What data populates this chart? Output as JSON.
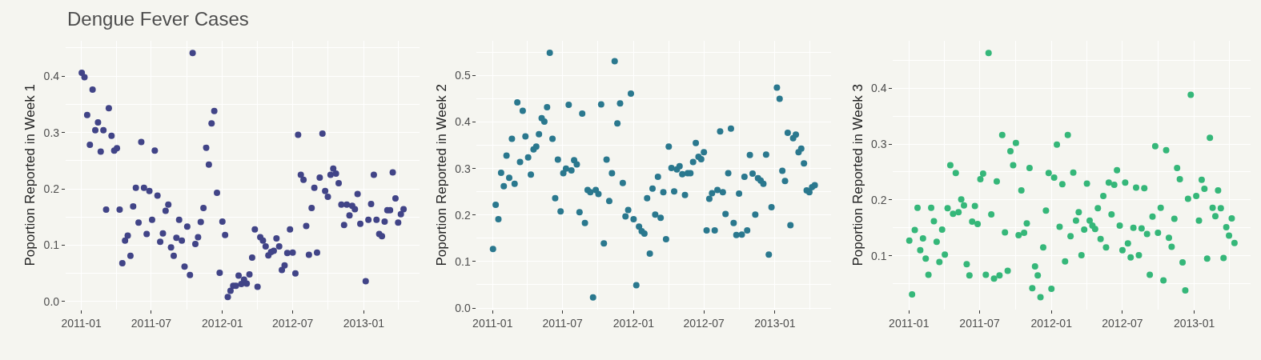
{
  "chart_data": [
    {
      "type": "scatter",
      "title": "Dengue Fever Cases",
      "ylabel": "Poportion Reported in Week 1",
      "color": "#414487",
      "marker": "circle",
      "grid": true,
      "x": [
        "2011-01-02",
        "2011-01-09",
        "2011-01-16",
        "2011-01-23",
        "2011-01-30",
        "2011-02-06",
        "2011-02-13",
        "2011-02-20",
        "2011-02-27",
        "2011-03-06",
        "2011-03-13",
        "2011-03-20",
        "2011-03-27",
        "2011-04-03",
        "2011-04-10",
        "2011-04-17",
        "2011-04-24",
        "2011-05-01",
        "2011-05-08",
        "2011-05-15",
        "2011-05-22",
        "2011-05-29",
        "2011-06-05",
        "2011-06-12",
        "2011-06-19",
        "2011-06-26",
        "2011-07-03",
        "2011-07-10",
        "2011-07-17",
        "2011-07-24",
        "2011-07-31",
        "2011-08-07",
        "2011-08-14",
        "2011-08-21",
        "2011-08-28",
        "2011-09-04",
        "2011-09-11",
        "2011-09-18",
        "2011-09-25",
        "2011-10-02",
        "2011-10-09",
        "2011-10-16",
        "2011-10-23",
        "2011-10-30",
        "2011-11-06",
        "2011-11-13",
        "2011-11-20",
        "2011-11-27",
        "2011-12-04",
        "2011-12-11",
        "2011-12-18",
        "2011-12-25",
        "2012-01-01",
        "2012-01-08",
        "2012-01-15",
        "2012-01-22",
        "2012-01-29",
        "2012-02-05",
        "2012-02-12",
        "2012-02-19",
        "2012-02-26",
        "2012-03-04",
        "2012-03-11",
        "2012-03-18",
        "2012-03-25",
        "2012-04-01",
        "2012-04-08",
        "2012-04-15",
        "2012-04-22",
        "2012-04-29",
        "2012-05-06",
        "2012-05-13",
        "2012-05-20",
        "2012-05-27",
        "2012-06-03",
        "2012-06-10",
        "2012-06-17",
        "2012-06-24",
        "2012-07-01",
        "2012-07-08",
        "2012-07-15",
        "2012-07-22",
        "2012-07-29",
        "2012-08-05",
        "2012-08-12",
        "2012-08-19",
        "2012-08-26",
        "2012-09-02",
        "2012-09-09",
        "2012-09-16",
        "2012-09-23",
        "2012-09-30",
        "2012-10-07",
        "2012-10-14",
        "2012-10-21",
        "2012-10-28",
        "2012-11-04",
        "2012-11-11",
        "2012-11-18",
        "2012-11-25",
        "2012-12-02",
        "2012-12-09",
        "2012-12-16",
        "2012-12-23",
        "2013-01-06",
        "2013-01-13",
        "2013-01-20",
        "2013-01-27",
        "2013-02-03",
        "2013-02-10",
        "2013-02-17",
        "2013-02-24",
        "2013-03-03",
        "2013-03-10",
        "2013-03-17",
        "2013-03-24",
        "2013-03-31",
        "2013-04-07",
        "2013-04-14"
      ],
      "values": [
        0.406,
        0.398,
        0.331,
        0.278,
        0.376,
        0.304,
        0.318,
        0.266,
        0.304,
        0.163,
        0.343,
        0.294,
        0.268,
        0.272,
        0.163,
        0.068,
        0.108,
        0.117,
        0.081,
        0.169,
        0.202,
        0.14,
        0.283,
        0.202,
        0.12,
        0.196,
        0.145,
        0.268,
        0.188,
        0.106,
        0.121,
        0.161,
        0.172,
        0.096,
        0.081,
        0.113,
        0.145,
        0.108,
        0.062,
        0.133,
        0.047,
        0.441,
        0.102,
        0.114,
        0.141,
        0.166,
        0.273,
        0.243,
        0.316,
        0.338,
        0.193,
        0.051,
        0.142,
        0.118,
        0.008,
        0.019,
        0.028,
        0.028,
        0.046,
        0.031,
        0.039,
        0.032,
        0.048,
        0.078,
        0.128,
        0.026,
        0.114,
        0.108,
        0.098,
        0.082,
        0.088,
        0.09,
        0.112,
        0.098,
        0.056,
        0.064,
        0.086,
        0.128,
        0.087,
        0.05,
        0.296,
        0.225,
        0.216,
        0.134,
        0.083,
        0.166,
        0.202,
        0.087,
        0.22,
        0.298,
        0.196,
        0.186,
        0.225,
        0.236,
        0.227,
        0.21,
        0.172,
        0.136,
        0.172,
        0.153,
        0.17,
        0.164,
        0.191,
        0.138,
        0.036,
        0.145,
        0.173,
        0.225,
        0.145,
        0.12,
        0.116,
        0.142,
        0.162,
        0.162,
        0.229,
        0.183,
        0.14,
        0.155,
        0.164
      ],
      "xlim": [
        "2010-11-21",
        "2013-05-26"
      ],
      "xticks": [
        "2011-01",
        "2011-07",
        "2012-01",
        "2012-07",
        "2013-01"
      ],
      "ylim": [
        -0.014,
        0.463
      ],
      "yticks": [
        {
          "value": 0,
          "label": "0.0"
        },
        0.1,
        0.2,
        0.3,
        0.4
      ]
    },
    {
      "type": "scatter",
      "ylabel": "Poportion Reported in Week 2",
      "color": "#2a788e",
      "marker": "circle",
      "grid": true,
      "x": [
        "2011-01-02",
        "2011-01-09",
        "2011-01-16",
        "2011-01-23",
        "2011-01-30",
        "2011-02-06",
        "2011-02-13",
        "2011-02-20",
        "2011-02-27",
        "2011-03-06",
        "2011-03-13",
        "2011-03-20",
        "2011-03-27",
        "2011-04-03",
        "2011-04-10",
        "2011-04-17",
        "2011-04-24",
        "2011-05-01",
        "2011-05-08",
        "2011-05-15",
        "2011-05-22",
        "2011-05-29",
        "2011-06-05",
        "2011-06-12",
        "2011-06-19",
        "2011-06-26",
        "2011-07-03",
        "2011-07-10",
        "2011-07-17",
        "2011-07-24",
        "2011-07-31",
        "2011-08-07",
        "2011-08-14",
        "2011-08-21",
        "2011-08-28",
        "2011-09-04",
        "2011-09-11",
        "2011-09-18",
        "2011-09-25",
        "2011-10-02",
        "2011-10-09",
        "2011-10-16",
        "2011-10-23",
        "2011-10-30",
        "2011-11-06",
        "2011-11-13",
        "2011-11-20",
        "2011-11-27",
        "2011-12-04",
        "2011-12-11",
        "2011-12-18",
        "2011-12-25",
        "2012-01-01",
        "2012-01-08",
        "2012-01-15",
        "2012-01-22",
        "2012-01-29",
        "2012-02-05",
        "2012-02-12",
        "2012-02-19",
        "2012-02-26",
        "2012-03-04",
        "2012-03-11",
        "2012-03-18",
        "2012-03-25",
        "2012-04-01",
        "2012-04-08",
        "2012-04-15",
        "2012-04-22",
        "2012-04-29",
        "2012-05-06",
        "2012-05-13",
        "2012-05-20",
        "2012-05-27",
        "2012-06-03",
        "2012-06-10",
        "2012-06-17",
        "2012-06-24",
        "2012-07-01",
        "2012-07-08",
        "2012-07-15",
        "2012-07-22",
        "2012-07-29",
        "2012-08-05",
        "2012-08-12",
        "2012-08-19",
        "2012-08-26",
        "2012-09-02",
        "2012-09-09",
        "2012-09-16",
        "2012-09-23",
        "2012-09-30",
        "2012-10-07",
        "2012-10-14",
        "2012-10-21",
        "2012-10-28",
        "2012-11-04",
        "2012-11-11",
        "2012-11-18",
        "2012-11-25",
        "2012-12-02",
        "2012-12-09",
        "2012-12-16",
        "2012-12-23",
        "2013-01-06",
        "2013-01-13",
        "2013-01-20",
        "2013-01-27",
        "2013-02-03",
        "2013-02-10",
        "2013-02-17",
        "2013-02-24",
        "2013-03-03",
        "2013-03-10",
        "2013-03-17",
        "2013-03-24",
        "2013-03-31",
        "2013-04-07",
        "2013-04-14"
      ],
      "values": [
        0.127,
        0.222,
        0.191,
        0.291,
        0.262,
        0.328,
        0.28,
        0.364,
        0.267,
        0.442,
        0.314,
        0.424,
        0.369,
        0.324,
        0.287,
        0.341,
        0.347,
        0.374,
        0.408,
        0.401,
        0.432,
        0.549,
        0.364,
        0.236,
        0.319,
        0.208,
        0.29,
        0.3,
        0.437,
        0.296,
        0.318,
        0.309,
        0.206,
        0.418,
        0.183,
        0.254,
        0.249,
        0.023,
        0.254,
        0.245,
        0.438,
        0.139,
        0.319,
        0.23,
        0.29,
        0.531,
        0.397,
        0.44,
        0.269,
        0.197,
        0.211,
        0.461,
        0.191,
        0.049,
        0.175,
        0.165,
        0.16,
        0.236,
        0.117,
        0.257,
        0.201,
        0.282,
        0.194,
        0.249,
        0.148,
        0.347,
        0.301,
        0.251,
        0.298,
        0.305,
        0.288,
        0.243,
        0.29,
        0.29,
        0.314,
        0.355,
        0.325,
        0.32,
        0.335,
        0.167,
        0.235,
        0.247,
        0.167,
        0.254,
        0.38,
        0.249,
        0.202,
        0.29,
        0.386,
        0.183,
        0.157,
        0.246,
        0.158,
        0.282,
        0.167,
        0.329,
        0.289,
        0.201,
        0.279,
        0.274,
        0.267,
        0.33,
        0.115,
        0.217,
        0.474,
        0.45,
        0.295,
        0.273,
        0.377,
        0.178,
        0.365,
        0.373,
        0.335,
        0.343,
        0.311,
        0.253,
        0.249,
        0.26,
        0.264
      ],
      "xlim": [
        "2010-11-21",
        "2013-05-26"
      ],
      "xticks": [
        "2011-01",
        "2011-07",
        "2012-01",
        "2012-07",
        "2013-01"
      ],
      "ylim": [
        -0.003,
        0.575
      ],
      "yticks": [
        {
          "value": 0,
          "label": "0.0"
        },
        0.1,
        0.2,
        0.3,
        0.4,
        0.5
      ]
    },
    {
      "type": "scatter",
      "ylabel": "Poportion Reported in Week 3",
      "color": "#35b779",
      "marker": "circle",
      "grid": true,
      "x": [
        "2011-01-02",
        "2011-01-09",
        "2011-01-16",
        "2011-01-23",
        "2011-01-30",
        "2011-02-06",
        "2011-02-13",
        "2011-02-20",
        "2011-02-27",
        "2011-03-06",
        "2011-03-13",
        "2011-03-20",
        "2011-03-27",
        "2011-04-03",
        "2011-04-10",
        "2011-04-17",
        "2011-04-24",
        "2011-05-01",
        "2011-05-08",
        "2011-05-15",
        "2011-05-22",
        "2011-05-29",
        "2011-06-05",
        "2011-06-12",
        "2011-06-19",
        "2011-06-26",
        "2011-07-03",
        "2011-07-10",
        "2011-07-17",
        "2011-07-24",
        "2011-07-31",
        "2011-08-07",
        "2011-08-14",
        "2011-08-21",
        "2011-08-28",
        "2011-09-04",
        "2011-09-11",
        "2011-09-18",
        "2011-09-25",
        "2011-10-02",
        "2011-10-09",
        "2011-10-16",
        "2011-10-23",
        "2011-10-30",
        "2011-11-06",
        "2011-11-13",
        "2011-11-20",
        "2011-11-27",
        "2011-12-04",
        "2011-12-11",
        "2011-12-18",
        "2011-12-25",
        "2012-01-01",
        "2012-01-08",
        "2012-01-15",
        "2012-01-22",
        "2012-01-29",
        "2012-02-05",
        "2012-02-12",
        "2012-02-19",
        "2012-02-26",
        "2012-03-04",
        "2012-03-11",
        "2012-03-18",
        "2012-03-25",
        "2012-04-01",
        "2012-04-08",
        "2012-04-15",
        "2012-04-22",
        "2012-04-29",
        "2012-05-06",
        "2012-05-13",
        "2012-05-20",
        "2012-05-27",
        "2012-06-03",
        "2012-06-10",
        "2012-06-17",
        "2012-06-24",
        "2012-07-01",
        "2012-07-08",
        "2012-07-15",
        "2012-07-22",
        "2012-07-29",
        "2012-08-05",
        "2012-08-12",
        "2012-08-19",
        "2012-08-26",
        "2012-09-02",
        "2012-09-09",
        "2012-09-16",
        "2012-09-23",
        "2012-09-30",
        "2012-10-07",
        "2012-10-14",
        "2012-10-21",
        "2012-10-28",
        "2012-11-04",
        "2012-11-11",
        "2012-11-18",
        "2012-11-25",
        "2012-12-02",
        "2012-12-09",
        "2012-12-16",
        "2012-12-23",
        "2013-01-06",
        "2013-01-13",
        "2013-01-20",
        "2013-01-27",
        "2013-02-03",
        "2013-02-10",
        "2013-02-17",
        "2013-02-24",
        "2013-03-03",
        "2013-03-10",
        "2013-03-17",
        "2013-03-24",
        "2013-03-31",
        "2013-04-07",
        "2013-04-14"
      ],
      "values": [
        0.127,
        0.031,
        0.146,
        0.186,
        0.11,
        0.131,
        0.095,
        0.066,
        0.186,
        0.162,
        0.125,
        0.089,
        0.147,
        0.102,
        0.185,
        0.262,
        0.175,
        0.248,
        0.178,
        0.201,
        0.19,
        0.085,
        0.065,
        0.161,
        0.189,
        0.157,
        0.237,
        0.247,
        0.066,
        0.463,
        0.174,
        0.059,
        0.233,
        0.065,
        0.316,
        0.142,
        0.073,
        0.287,
        0.262,
        0.302,
        0.137,
        0.217,
        0.141,
        0.158,
        0.257,
        0.042,
        0.081,
        0.065,
        0.026,
        0.115,
        0.181,
        0.248,
        0.041,
        0.24,
        0.299,
        0.152,
        0.228,
        0.09,
        0.316,
        0.135,
        0.249,
        0.163,
        0.178,
        0.101,
        0.147,
        0.229,
        0.163,
        0.154,
        0.148,
        0.185,
        0.13,
        0.207,
        0.115,
        0.231,
        0.174,
        0.227,
        0.253,
        0.154,
        0.11,
        0.231,
        0.122,
        0.097,
        0.15,
        0.222,
        0.101,
        0.149,
        0.221,
        0.139,
        0.066,
        0.17,
        0.296,
        0.141,
        0.186,
        0.056,
        0.289,
        0.132,
        0.116,
        0.166,
        0.257,
        0.237,
        0.088,
        0.038,
        0.202,
        0.388,
        0.207,
        0.163,
        0.236,
        0.22,
        0.095,
        0.311,
        0.186,
        0.171,
        0.217,
        0.185,
        0.096,
        0.151,
        0.136,
        0.167,
        0.123
      ],
      "xlim": [
        "2010-11-21",
        "2013-05-26"
      ],
      "xticks": [
        "2011-01",
        "2011-07",
        "2012-01",
        "2012-07",
        "2013-01"
      ],
      "ylim": [
        0.004,
        0.485
      ],
      "yticks": [
        0.1,
        0.2,
        0.3,
        0.4
      ]
    }
  ]
}
